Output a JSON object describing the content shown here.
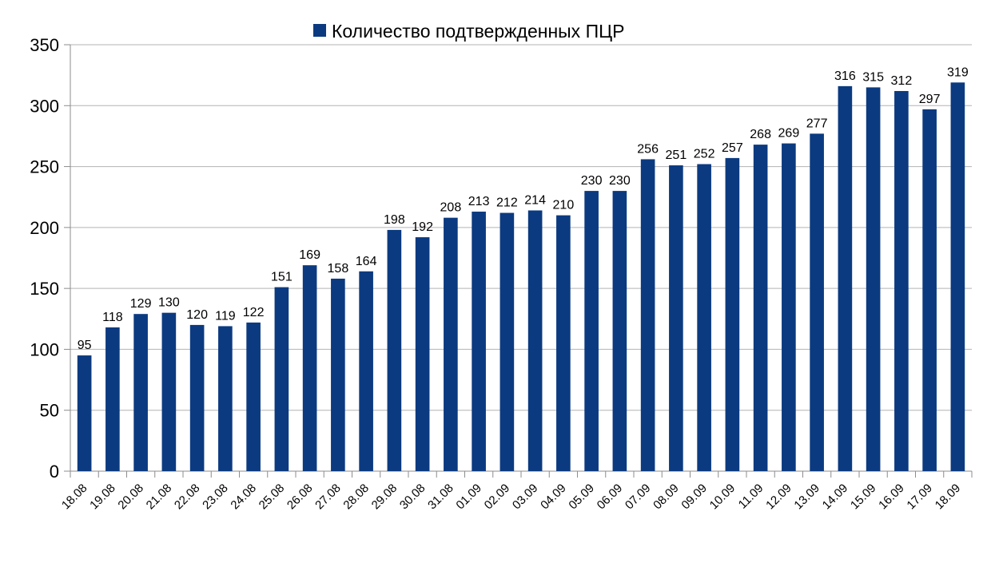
{
  "chart_data": {
    "type": "bar",
    "categories": [
      "18.08",
      "19.08",
      "20.08",
      "21.08",
      "22.08",
      "23.08",
      "24.08",
      "25.08",
      "26.08",
      "27.08",
      "28.08",
      "29.08",
      "30.08",
      "31.08",
      "01.09",
      "02.09",
      "03.09",
      "04.09",
      "05.09",
      "06.09",
      "07.09",
      "08.09",
      "09.09",
      "10.09",
      "11.09",
      "12.09",
      "13.09",
      "14.09",
      "15.09",
      "16.09",
      "17.09",
      "18.09"
    ],
    "series": [
      {
        "name": "Количество подтвержденных ПЦР",
        "values": [
          95,
          118,
          129,
          130,
          120,
          119,
          122,
          151,
          169,
          158,
          164,
          198,
          192,
          208,
          213,
          212,
          214,
          210,
          230,
          230,
          256,
          251,
          252,
          257,
          268,
          269,
          277,
          316,
          315,
          312,
          297,
          319
        ]
      }
    ],
    "ylim": [
      0,
      350
    ],
    "yticks": [
      0,
      50,
      100,
      150,
      200,
      250,
      300,
      350
    ],
    "grid": true,
    "legend": "top-center",
    "bar_color": "#0b3a80"
  }
}
